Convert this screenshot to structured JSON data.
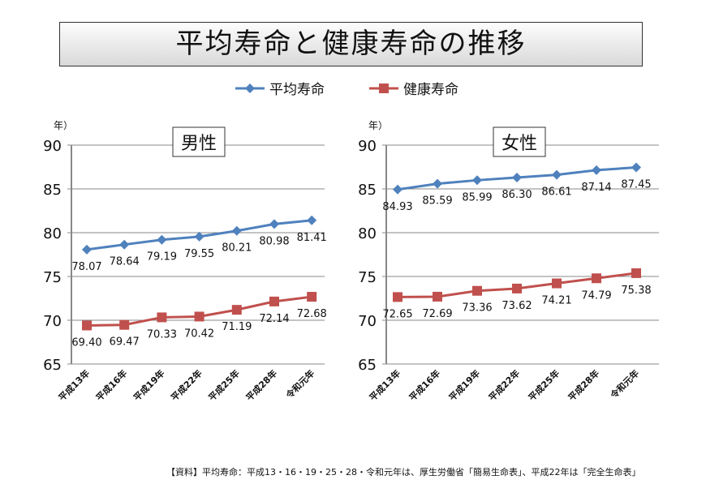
{
  "title": "平均寿命と健康寿命の推移",
  "legend": [
    {
      "label": "平均寿命",
      "color": "#4f81bd"
    },
    {
      "label": "健康寿命",
      "color": "#c0504d"
    }
  ],
  "source": "【資料】平均寿命：平成13・16・19・25・28・令和元年は、厚生労働省「簡易生命表」、平成22年は「完全生命表」",
  "chart_data": [
    {
      "type": "line",
      "title": "男性",
      "ylabel": "年）",
      "ylim": [
        65,
        90
      ],
      "yticks": [
        65,
        70,
        75,
        80,
        85,
        90
      ],
      "grid": true,
      "categories": [
        "平成13年",
        "平成16年",
        "平成19年",
        "平成22年",
        "平成25年",
        "平成28年",
        "令和元年"
      ],
      "series": [
        {
          "name": "平均寿命",
          "values": [
            78.07,
            78.64,
            79.19,
            79.55,
            80.21,
            80.98,
            81.41
          ]
        },
        {
          "name": "健康寿命",
          "values": [
            69.4,
            69.47,
            70.33,
            70.42,
            71.19,
            72.14,
            72.68
          ]
        }
      ]
    },
    {
      "type": "line",
      "title": "女性",
      "ylabel": "年）",
      "ylim": [
        65,
        90
      ],
      "yticks": [
        65,
        70,
        75,
        80,
        85,
        90
      ],
      "grid": true,
      "categories": [
        "平成13年",
        "平成16年",
        "平成19年",
        "平成22年",
        "平成25年",
        "平成28年",
        "令和元年"
      ],
      "series": [
        {
          "name": "平均寿命",
          "values": [
            84.93,
            85.59,
            85.99,
            86.3,
            86.61,
            87.14,
            87.45
          ]
        },
        {
          "name": "健康寿命",
          "values": [
            72.65,
            72.69,
            73.36,
            73.62,
            74.21,
            74.79,
            75.38
          ]
        }
      ]
    }
  ]
}
